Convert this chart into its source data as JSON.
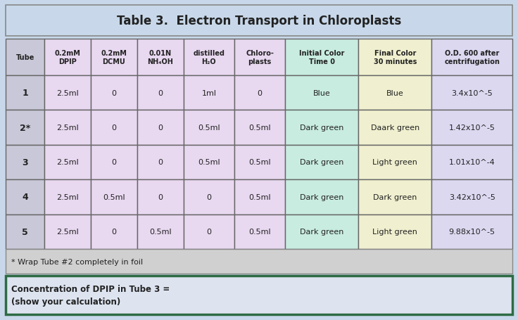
{
  "title": "Table 3.  Electron Transport in Chloroplasts",
  "bg_color": "#c8d8ea",
  "table_border_color": "#888888",
  "footnote_bg": "#d0d0d0",
  "bottom_bg": "#dde4f0",
  "bottom_border": "#2e6b44",
  "col_headers": [
    "Tube",
    "0.2mM\nDPIP",
    "0.2mM\nDCMU",
    "0.01N\nNH₄OH",
    "distilled\nH₂O",
    "Chloro-\nplasts",
    "Initial Color\nTime 0",
    "Final Color\n30 minutes",
    "O.D. 600 after\ncentrifugation"
  ],
  "col_header_bgs": [
    "#c8c8d8",
    "#e8d8f0",
    "#e8d8f0",
    "#e8d8f0",
    "#e8d8f0",
    "#e8d8f0",
    "#c8ece0",
    "#f0f0d0",
    "#dcd8f0"
  ],
  "rows": [
    {
      "tube": "1",
      "dpip": "2.5ml",
      "dcmu": "0",
      "nh4oh": "0",
      "h2o": "1ml",
      "chloro": "0",
      "init_color": "Blue",
      "final_color": "Blue",
      "od": "3.4x10^-5"
    },
    {
      "tube": "2*",
      "dpip": "2.5ml",
      "dcmu": "0",
      "nh4oh": "0",
      "h2o": "0.5ml",
      "chloro": "0.5ml",
      "init_color": "Dark green",
      "final_color": "Daark green",
      "od": "1.42x10^-5"
    },
    {
      "tube": "3",
      "dpip": "2.5ml",
      "dcmu": "0",
      "nh4oh": "0",
      "h2o": "0.5ml",
      "chloro": "0.5ml",
      "init_color": "Dark green",
      "final_color": "Light green",
      "od": "1.01x10^-4"
    },
    {
      "tube": "4",
      "dpip": "2.5ml",
      "dcmu": "0.5ml",
      "nh4oh": "0",
      "h2o": "0",
      "chloro": "0.5ml",
      "init_color": "Dark green",
      "final_color": "Dark green",
      "od": "3.42x10^-5"
    },
    {
      "tube": "5",
      "dpip": "2.5ml",
      "dcmu": "0",
      "nh4oh": "0.5ml",
      "h2o": "0",
      "chloro": "0.5ml",
      "init_color": "Dark green",
      "final_color": "Light green",
      "od": "9.88x10^-5"
    }
  ],
  "row_cell_bgs": [
    [
      "#c8c8d8",
      "#e8d8f0",
      "#e8d8f0",
      "#e8d8f0",
      "#e8d8f0",
      "#e8d8f0",
      "#c8ece0",
      "#f0f0d0",
      "#dcd8f0"
    ],
    [
      "#c8c8d8",
      "#e8d8f0",
      "#e8d8f0",
      "#e8d8f0",
      "#e8d8f0",
      "#e8d8f0",
      "#c8ece0",
      "#f0f0d0",
      "#dcd8f0"
    ],
    [
      "#c8c8d8",
      "#e8d8f0",
      "#e8d8f0",
      "#e8d8f0",
      "#e8d8f0",
      "#e8d8f0",
      "#c8ece0",
      "#f0f0d0",
      "#dcd8f0"
    ],
    [
      "#c8c8d8",
      "#e8d8f0",
      "#e8d8f0",
      "#e8d8f0",
      "#e8d8f0",
      "#e8d8f0",
      "#c8ece0",
      "#f0f0d0",
      "#dcd8f0"
    ],
    [
      "#c8c8d8",
      "#e8d8f0",
      "#e8d8f0",
      "#e8d8f0",
      "#e8d8f0",
      "#e8d8f0",
      "#c8ece0",
      "#f0f0d0",
      "#dcd8f0"
    ]
  ],
  "footnote_text": "* Wrap Tube #2 completely in foil",
  "bottom_text_line1": "Concentration of DPIP in Tube 3 =",
  "bottom_text_line2": "(show your calculation)",
  "fig_width": 7.36,
  "fig_height": 4.56,
  "dpi": 100
}
